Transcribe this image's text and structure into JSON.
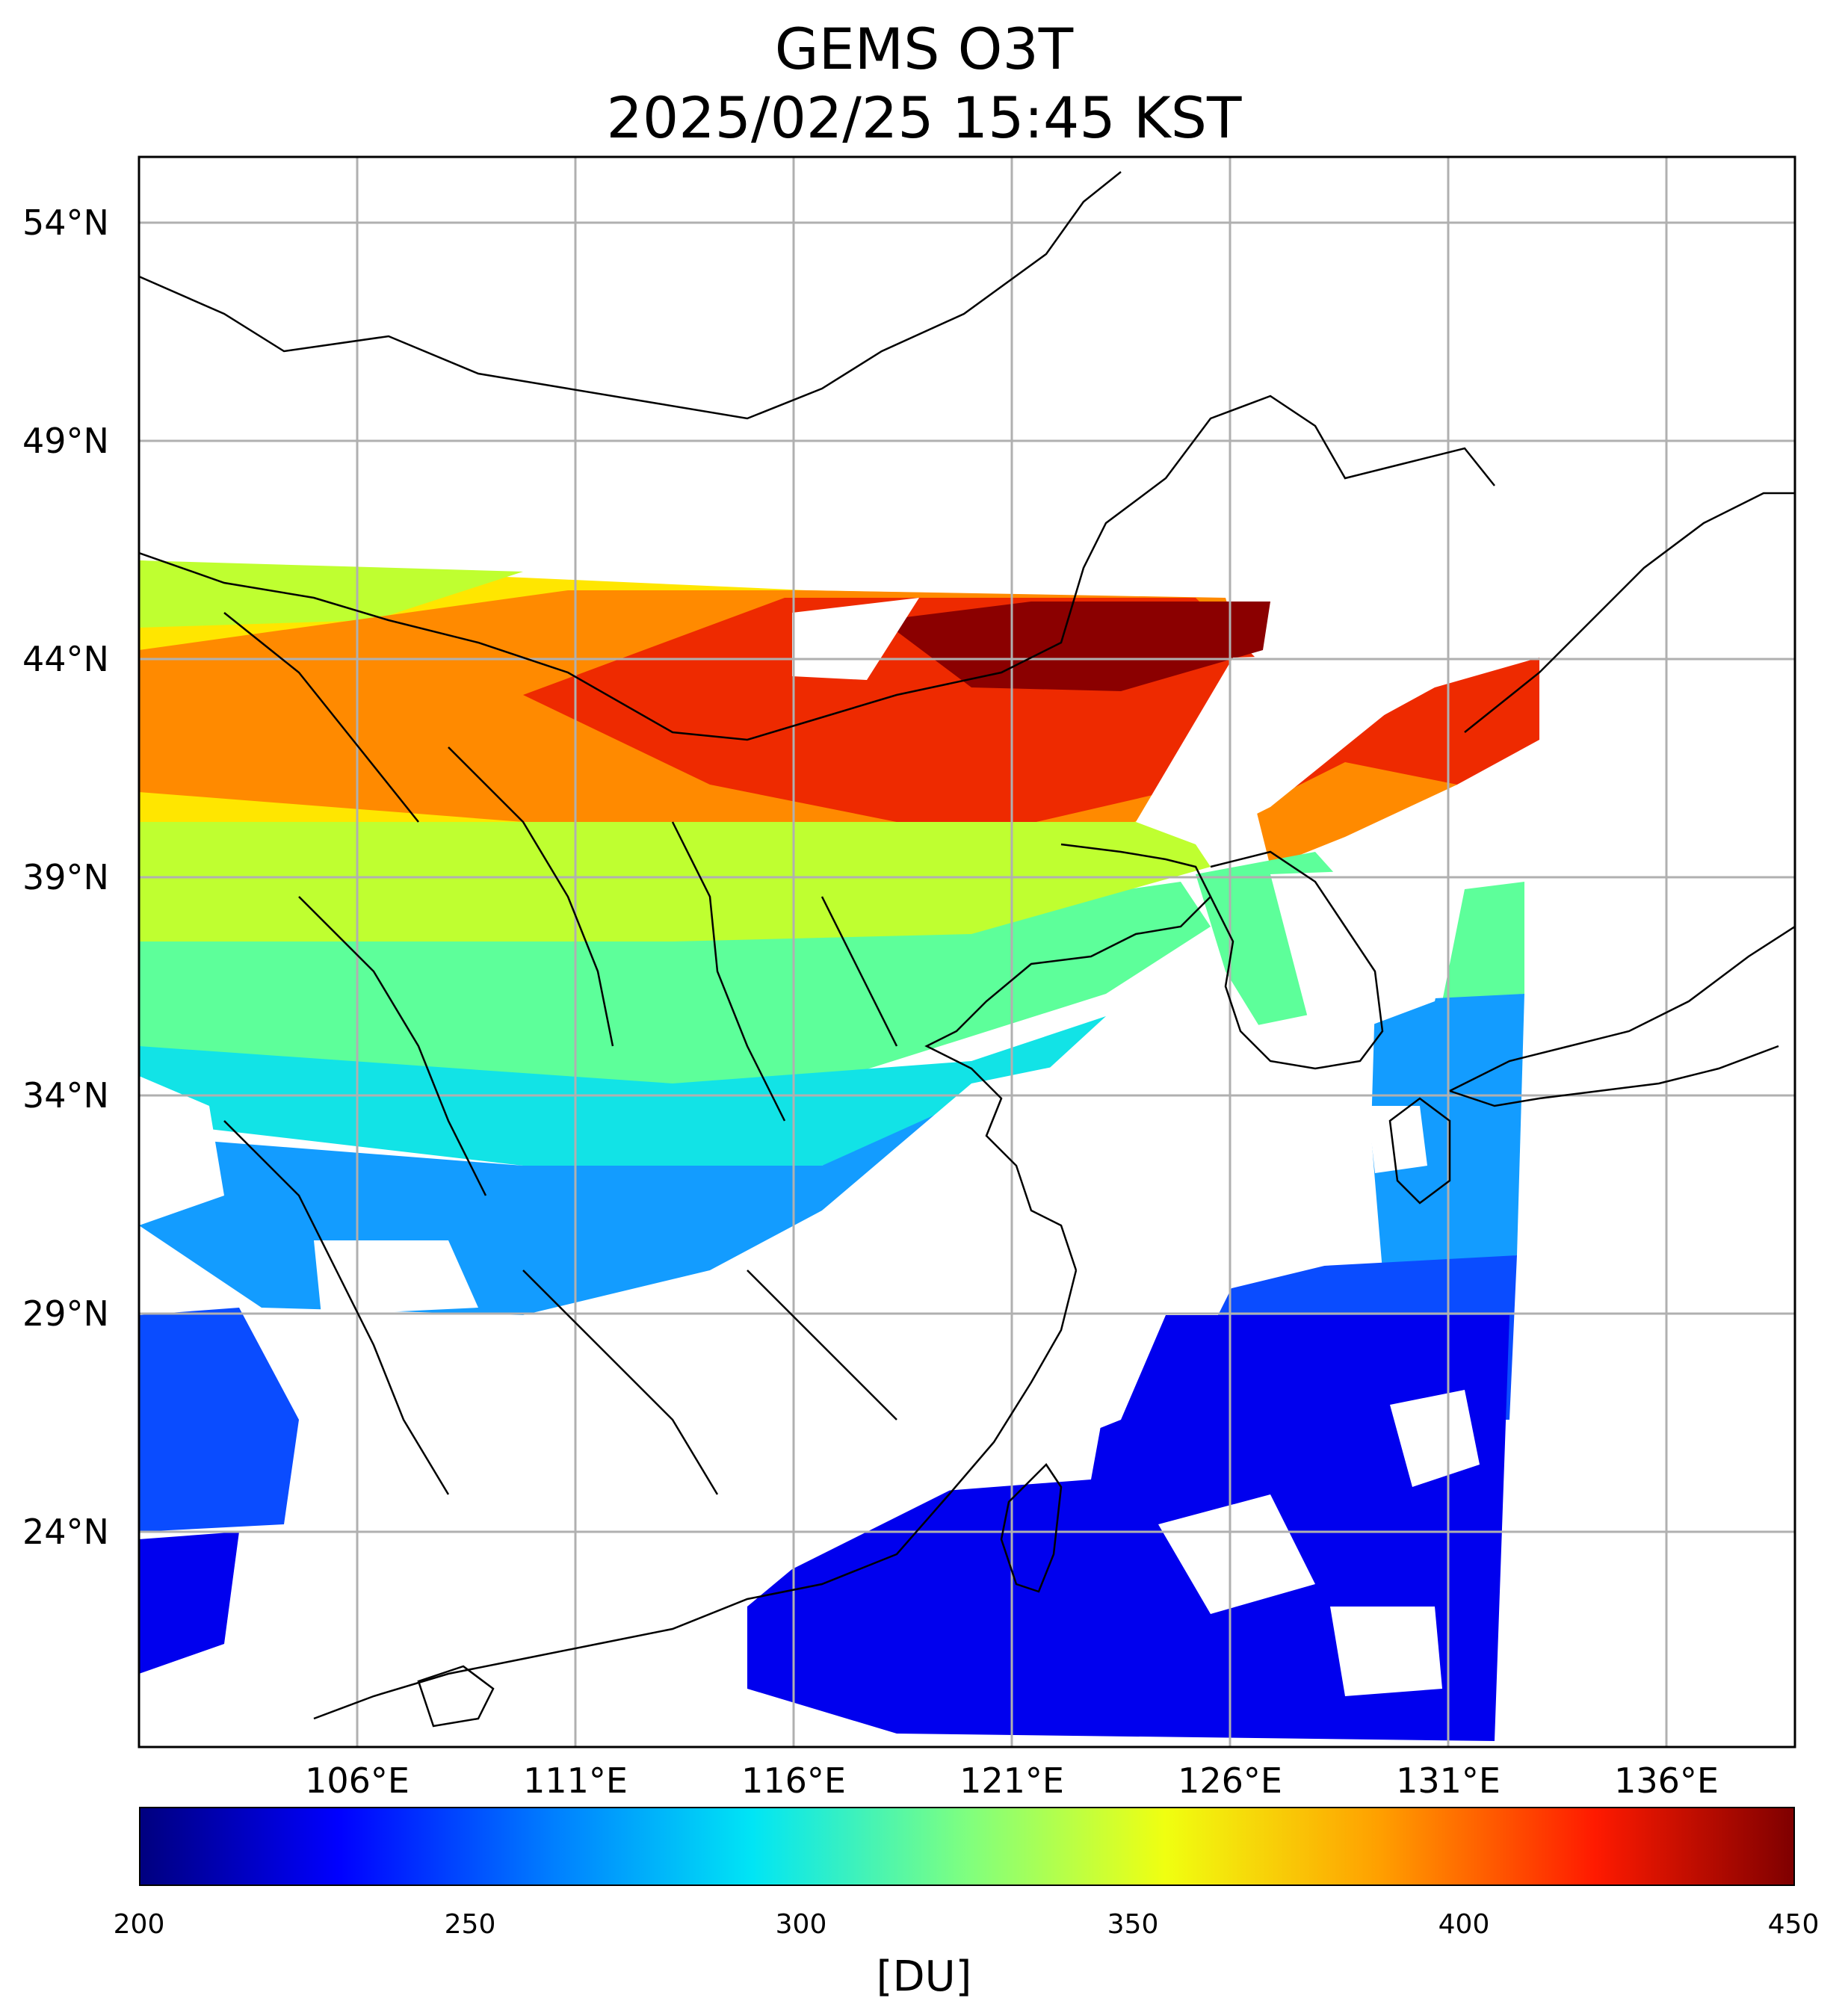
{
  "title": "GEMS O3T",
  "subtitle": "2025/02/25 15:45 KST",
  "lat_labels": [
    "54°N",
    "49°N",
    "44°N",
    "39°N",
    "34°N",
    "29°N",
    "24°N"
  ],
  "lon_labels": [
    "106°E",
    "111°E",
    "116°E",
    "121°E",
    "126°E",
    "131°E",
    "136°E"
  ],
  "colorbar": {
    "ticks": [
      "200",
      "250",
      "300",
      "350",
      "400",
      "450"
    ],
    "unit": "[DU]",
    "min": 200,
    "max": 450,
    "colormap": "jet"
  },
  "map": {
    "lon_range": [
      101,
      139
    ],
    "lat_range": [
      19.5,
      55.5
    ],
    "grid": true,
    "coastlines": true,
    "borders": true,
    "band_colors": {
      "high": "#8b0000",
      "red": "#ee2a00",
      "orange": "#ff8a00",
      "yellow": "#ffe600",
      "lime": "#bfff30",
      "green": "#5dff9a",
      "cyan": "#12e3e6",
      "sky": "#139cff",
      "blue": "#0a4cff",
      "deep": "#0000ee"
    }
  }
}
